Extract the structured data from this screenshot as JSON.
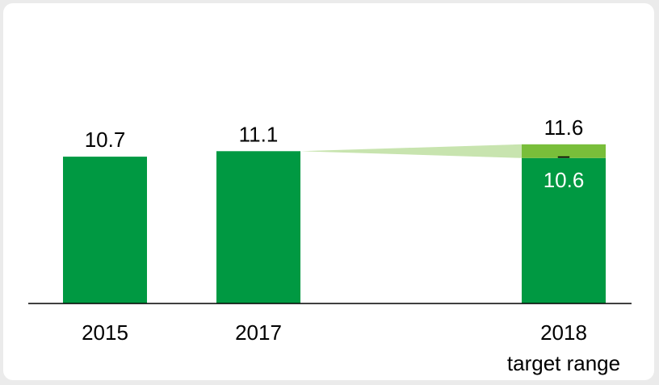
{
  "chart_data": {
    "type": "bar",
    "categories": [
      "2015",
      "2017",
      "2018"
    ],
    "category_sublabels": [
      "",
      "",
      "target range"
    ],
    "values": [
      10.7,
      11.1,
      10.6
    ],
    "value_labels": [
      "10.7",
      "11.1",
      "10.6"
    ],
    "target_range": {
      "category": "2018",
      "low": 10.6,
      "high": 11.6,
      "low_label": "10.6",
      "high_label": "11.6",
      "separator": "–"
    },
    "title": "",
    "xlabel": "",
    "ylabel": "",
    "ylim": [
      0,
      12
    ],
    "grid": false,
    "legend": "none",
    "colors": {
      "bar": "#009942",
      "range": "#79be3a",
      "wedge": "#c8e4af",
      "axis": "#000000",
      "label": "#000000",
      "inner_label": "#ffffff"
    }
  }
}
